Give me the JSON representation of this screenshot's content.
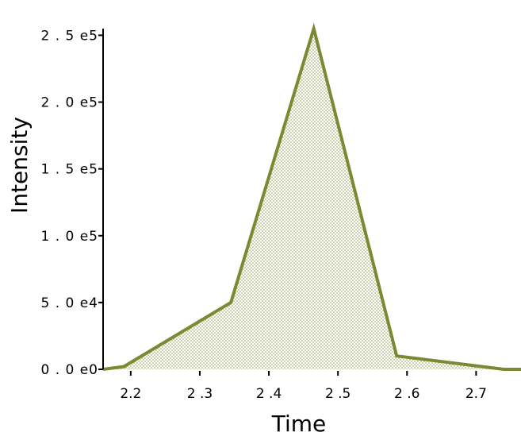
{
  "chart_data": {
    "type": "area",
    "title": "",
    "xlabel": "Time",
    "ylabel": "Intensity",
    "x": [
      2.16,
      2.19,
      2.345,
      2.465,
      2.585,
      2.74,
      2.765
    ],
    "series": [
      {
        "values": [
          0,
          2000,
          50000,
          255000,
          10000,
          0,
          0
        ]
      }
    ],
    "xlim": [
      2.16,
      2.765
    ],
    "ylim": [
      0,
      255000
    ],
    "x_ticks": [
      {
        "value": 2.2,
        "label": "2.2"
      },
      {
        "value": 2.3,
        "label": "2 .3"
      },
      {
        "value": 2.4,
        "label": "2 .4"
      },
      {
        "value": 2.5,
        "label": "2 .5"
      },
      {
        "value": 2.6,
        "label": "2 .6"
      },
      {
        "value": 2.7,
        "label": "2.7"
      }
    ],
    "y_ticks": [
      {
        "value": 0,
        "label": "0 . 0 e0"
      },
      {
        "value": 50000,
        "label": "5 . 0 e4"
      },
      {
        "value": 100000,
        "label": "1 . 0 e5"
      },
      {
        "value": 150000,
        "label": "1 . 5 e5"
      },
      {
        "value": 200000,
        "label": "2 . 0 e5"
      },
      {
        "value": 250000,
        "label": "2 . 5 e5"
      }
    ],
    "grid": false,
    "legend": "none",
    "colors": {
      "line": "#7b8a32",
      "fill_dots": "#8a9440",
      "axis": "#000000"
    }
  }
}
